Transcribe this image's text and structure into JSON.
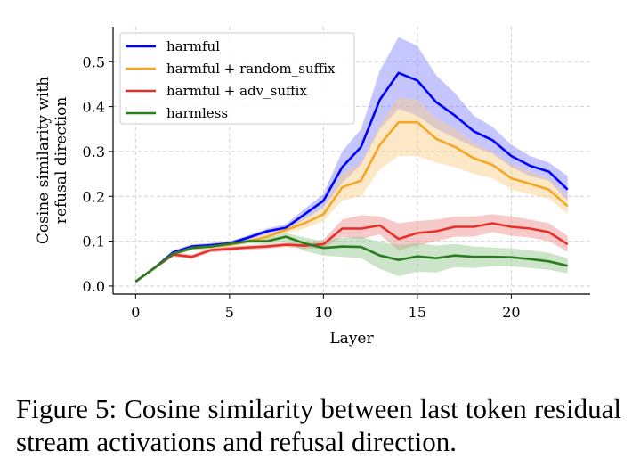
{
  "chart_data": {
    "type": "line",
    "xlabel": "Layer",
    "ylabel_lines": [
      "Cosine similarity with",
      "refusal direction"
    ],
    "xlim": [
      -1.2,
      24.2
    ],
    "ylim": [
      -0.018,
      0.578
    ],
    "xticks": [
      0,
      5,
      10,
      15,
      20
    ],
    "yticks": [
      0.0,
      0.1,
      0.2,
      0.3,
      0.4,
      0.5
    ],
    "ytick_labels": [
      "0.0",
      "0.1",
      "0.2",
      "0.3",
      "0.4",
      "0.5"
    ],
    "grid": true,
    "legend_position": "top-left",
    "x": [
      0,
      1,
      2,
      3,
      4,
      5,
      6,
      7,
      8,
      9,
      10,
      11,
      12,
      13,
      14,
      15,
      16,
      17,
      18,
      19,
      20,
      21,
      22,
      23
    ],
    "series": [
      {
        "name": "harmful",
        "color": "#0000ff",
        "band_color": "#8080ff",
        "values": [
          0.01,
          0.04,
          0.075,
          0.088,
          0.091,
          0.095,
          0.108,
          0.122,
          0.13,
          0.16,
          0.19,
          0.265,
          0.31,
          0.415,
          0.475,
          0.458,
          0.41,
          0.38,
          0.345,
          0.325,
          0.29,
          0.268,
          0.255,
          0.215
        ],
        "upper": [
          0.012,
          0.043,
          0.08,
          0.093,
          0.096,
          0.1,
          0.113,
          0.128,
          0.138,
          0.172,
          0.205,
          0.3,
          0.35,
          0.48,
          0.555,
          0.535,
          0.47,
          0.43,
          0.38,
          0.355,
          0.315,
          0.29,
          0.275,
          0.245
        ],
        "lower": [
          0.008,
          0.037,
          0.07,
          0.083,
          0.086,
          0.09,
          0.103,
          0.116,
          0.122,
          0.148,
          0.175,
          0.23,
          0.27,
          0.35,
          0.395,
          0.38,
          0.35,
          0.33,
          0.31,
          0.295,
          0.265,
          0.245,
          0.235,
          0.19
        ]
      },
      {
        "name": "harmful + random_suffix",
        "color": "#f5a623",
        "band_color": "#f8cd80",
        "values": [
          0.01,
          0.04,
          0.072,
          0.085,
          0.088,
          0.092,
          0.1,
          0.11,
          0.125,
          0.14,
          0.16,
          0.22,
          0.235,
          0.315,
          0.365,
          0.365,
          0.328,
          0.31,
          0.285,
          0.27,
          0.24,
          0.228,
          0.215,
          0.178
        ],
        "upper": [
          0.012,
          0.043,
          0.077,
          0.09,
          0.093,
          0.097,
          0.105,
          0.116,
          0.132,
          0.152,
          0.175,
          0.25,
          0.275,
          0.36,
          0.42,
          0.415,
          0.375,
          0.35,
          0.32,
          0.3,
          0.27,
          0.255,
          0.24,
          0.2
        ],
        "lower": [
          0.008,
          0.037,
          0.067,
          0.08,
          0.083,
          0.087,
          0.095,
          0.104,
          0.118,
          0.128,
          0.145,
          0.19,
          0.2,
          0.26,
          0.29,
          0.29,
          0.275,
          0.265,
          0.25,
          0.24,
          0.215,
          0.205,
          0.195,
          0.16
        ]
      },
      {
        "name": "harmful + adv_suffix",
        "color": "#e8302a",
        "band_color": "#ec8a85",
        "values": [
          0.01,
          0.04,
          0.07,
          0.065,
          0.08,
          0.083,
          0.086,
          0.088,
          0.092,
          0.09,
          0.093,
          0.128,
          0.128,
          0.135,
          0.105,
          0.118,
          0.122,
          0.132,
          0.132,
          0.14,
          0.132,
          0.128,
          0.12,
          0.093
        ],
        "upper": [
          0.012,
          0.043,
          0.075,
          0.07,
          0.085,
          0.088,
          0.091,
          0.093,
          0.097,
          0.097,
          0.103,
          0.148,
          0.158,
          0.155,
          0.14,
          0.145,
          0.148,
          0.155,
          0.155,
          0.16,
          0.155,
          0.148,
          0.14,
          0.112
        ],
        "lower": [
          0.008,
          0.037,
          0.065,
          0.06,
          0.075,
          0.078,
          0.081,
          0.083,
          0.087,
          0.083,
          0.084,
          0.11,
          0.105,
          0.115,
          0.08,
          0.09,
          0.1,
          0.11,
          0.11,
          0.12,
          0.112,
          0.108,
          0.1,
          0.076
        ]
      },
      {
        "name": "harmless",
        "color": "#2a7d1f",
        "band_color": "#8fc487",
        "values": [
          0.01,
          0.04,
          0.072,
          0.085,
          0.088,
          0.094,
          0.1,
          0.1,
          0.11,
          0.095,
          0.085,
          0.088,
          0.087,
          0.068,
          0.058,
          0.066,
          0.062,
          0.068,
          0.065,
          0.065,
          0.064,
          0.06,
          0.055,
          0.045
        ],
        "upper": [
          0.012,
          0.043,
          0.077,
          0.09,
          0.093,
          0.099,
          0.105,
          0.107,
          0.118,
          0.108,
          0.1,
          0.108,
          0.11,
          0.098,
          0.092,
          0.096,
          0.09,
          0.094,
          0.088,
          0.086,
          0.084,
          0.08,
          0.074,
          0.062
        ],
        "lower": [
          0.008,
          0.037,
          0.067,
          0.08,
          0.083,
          0.089,
          0.095,
          0.093,
          0.098,
          0.078,
          0.068,
          0.065,
          0.062,
          0.038,
          0.022,
          0.032,
          0.03,
          0.042,
          0.04,
          0.044,
          0.044,
          0.04,
          0.036,
          0.028
        ]
      }
    ]
  },
  "caption": "Figure 5:  Cosine similarity between last token residual stream activations and refusal direction."
}
